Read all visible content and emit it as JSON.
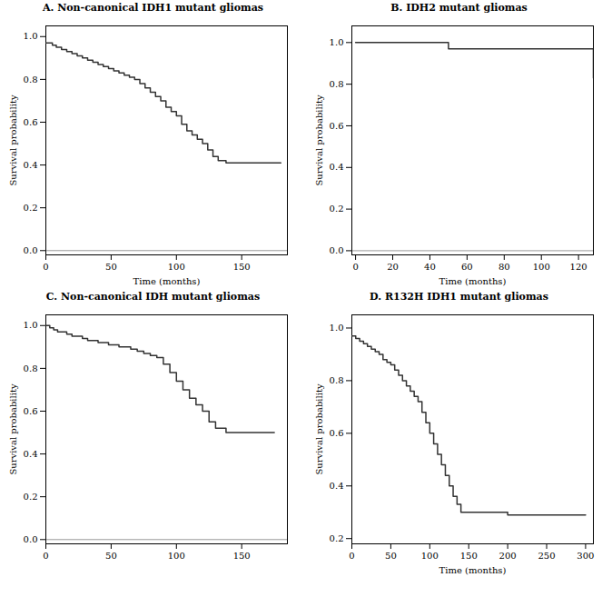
{
  "chart_data": [
    {
      "type": "step",
      "title": "A. Non-canonical IDH1 mutant gliomas",
      "x_label": "Time (months)",
      "y_label": "Survival probability",
      "x": [
        0,
        5,
        8,
        12,
        16,
        20,
        24,
        28,
        32,
        36,
        40,
        44,
        48,
        52,
        56,
        60,
        64,
        68,
        72,
        76,
        80,
        84,
        88,
        92,
        96,
        100,
        104,
        108,
        112,
        116,
        120,
        124,
        128,
        132,
        138,
        180
      ],
      "values": [
        0.97,
        0.96,
        0.95,
        0.94,
        0.93,
        0.92,
        0.91,
        0.9,
        0.89,
        0.88,
        0.87,
        0.86,
        0.85,
        0.84,
        0.83,
        0.82,
        0.81,
        0.8,
        0.78,
        0.76,
        0.74,
        0.72,
        0.7,
        0.67,
        0.65,
        0.63,
        0.59,
        0.56,
        0.54,
        0.52,
        0.5,
        0.47,
        0.44,
        0.42,
        0.41,
        0.41
      ],
      "color": "#333333",
      "grid": false,
      "xlim": [
        0,
        185
      ],
      "xticks": [
        0,
        50,
        100,
        150
      ],
      "ylim": [
        -0.02,
        1.05
      ],
      "yticks": [
        {
          "value": 0.0,
          "label": "0.0"
        },
        0.2,
        0.4,
        0.6,
        0.8,
        {
          "value": 1.0,
          "label": "1.0"
        }
      ]
    },
    {
      "type": "step",
      "title": "B. IDH2 mutant gliomas",
      "x_label": "Time (months)",
      "y_label": "Survival probability",
      "x": [
        0,
        20,
        50,
        90,
        128
      ],
      "values": [
        1.0,
        1.0,
        0.97,
        0.97,
        0.83
      ],
      "color": "#333333",
      "grid": false,
      "xlim": [
        -2,
        128
      ],
      "xticks": [
        0,
        20,
        40,
        60,
        80,
        100,
        120
      ],
      "ylim": [
        -0.02,
        1.08
      ],
      "yticks": [
        {
          "value": 0.0,
          "label": "0.0"
        },
        0.2,
        0.4,
        0.6,
        0.8,
        {
          "value": 1.0,
          "label": "1.0"
        }
      ]
    },
    {
      "type": "step",
      "title": "C. Non-canonical IDH mutant gliomas",
      "y_label": "Survival probability",
      "x": [
        0,
        3,
        6,
        9,
        12,
        16,
        20,
        24,
        28,
        32,
        36,
        40,
        44,
        48,
        52,
        56,
        60,
        65,
        70,
        75,
        80,
        85,
        90,
        95,
        100,
        105,
        110,
        115,
        120,
        125,
        130,
        138,
        175
      ],
      "values": [
        1.0,
        0.99,
        0.98,
        0.97,
        0.97,
        0.96,
        0.95,
        0.95,
        0.94,
        0.93,
        0.93,
        0.92,
        0.92,
        0.91,
        0.91,
        0.9,
        0.9,
        0.89,
        0.88,
        0.87,
        0.86,
        0.85,
        0.82,
        0.78,
        0.74,
        0.7,
        0.66,
        0.63,
        0.6,
        0.55,
        0.52,
        0.5,
        0.5
      ],
      "color": "#333333",
      "grid": false,
      "xlim": [
        0,
        185
      ],
      "xticks": [
        0,
        50,
        100,
        150
      ],
      "ylim": [
        -0.02,
        1.05
      ],
      "yticks": [
        {
          "value": 0.0,
          "label": "0.0"
        },
        0.2,
        0.4,
        0.6,
        0.8,
        {
          "value": 1.0,
          "label": "1.0"
        }
      ]
    },
    {
      "type": "step",
      "title": "D. R132H IDH1 mutant gliomas",
      "x_label": "Time (months)",
      "y_label": "Survival probability",
      "x": [
        0,
        5,
        10,
        15,
        20,
        25,
        30,
        35,
        40,
        45,
        50,
        55,
        60,
        65,
        70,
        75,
        80,
        85,
        90,
        95,
        100,
        105,
        110,
        115,
        120,
        125,
        130,
        135,
        140,
        200,
        300
      ],
      "values": [
        0.97,
        0.96,
        0.95,
        0.94,
        0.93,
        0.92,
        0.91,
        0.9,
        0.88,
        0.87,
        0.86,
        0.84,
        0.82,
        0.8,
        0.78,
        0.76,
        0.74,
        0.72,
        0.68,
        0.64,
        0.6,
        0.56,
        0.52,
        0.48,
        0.44,
        0.4,
        0.36,
        0.33,
        0.3,
        0.29,
        0.29
      ],
      "color": "#333333",
      "grid": false,
      "xlim": [
        0,
        310
      ],
      "xticks": [
        0,
        50,
        100,
        150,
        200,
        250,
        300
      ],
      "ylim": [
        0.18,
        1.05
      ],
      "yticks": [
        0.2,
        0.4,
        0.6,
        0.8,
        {
          "value": 1.0,
          "label": "1.0"
        }
      ]
    }
  ]
}
